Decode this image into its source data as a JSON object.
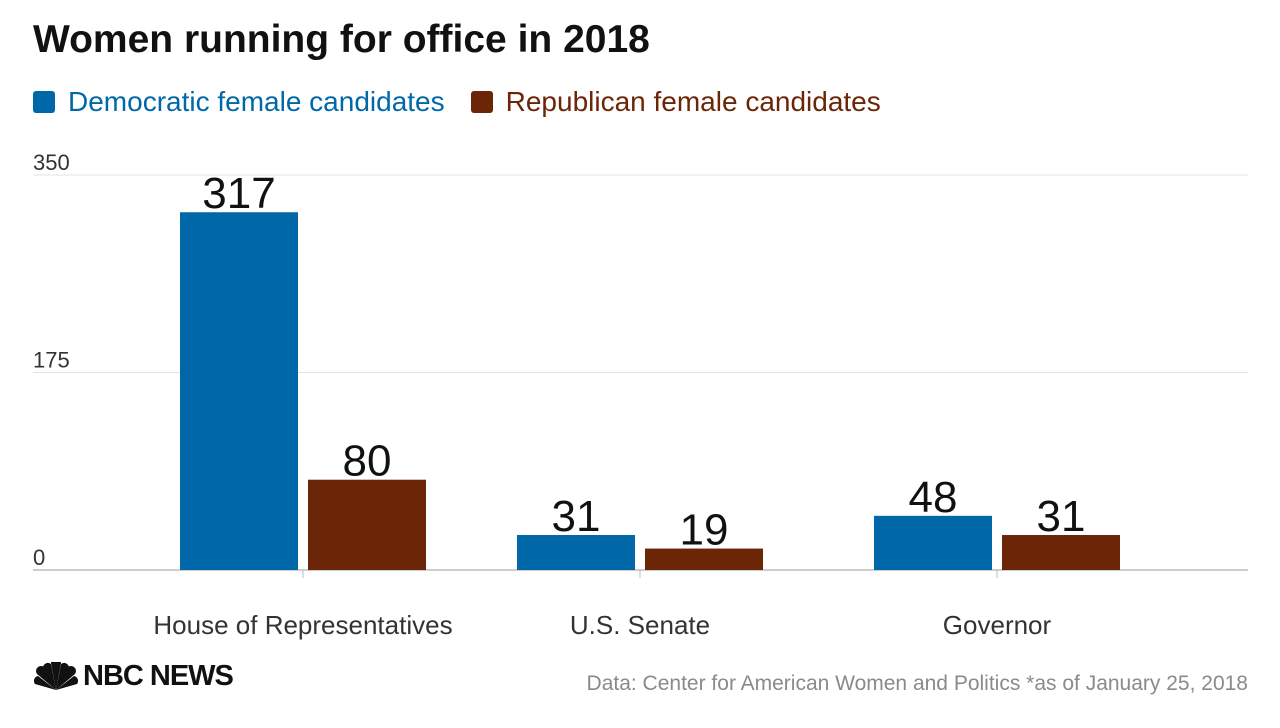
{
  "header": {
    "title": "Women running for office in 2018"
  },
  "legend": [
    {
      "label": "Democratic female candidates",
      "color": "#0068a8"
    },
    {
      "label": "Republican female candidates",
      "color": "#6b2507"
    }
  ],
  "chart_data": {
    "type": "bar",
    "title": "Women running for office in 2018",
    "xlabel": "",
    "ylabel": "",
    "categories": [
      "House of Representatives",
      "U.S. Senate",
      "Governor"
    ],
    "series": [
      {
        "name": "Democratic female candidates",
        "values": [
          317,
          31,
          48
        ],
        "color": "#0068a8"
      },
      {
        "name": "Republican female candidates",
        "values": [
          80,
          19,
          31
        ],
        "color": "#6b2507"
      }
    ],
    "ylim": [
      0,
      350
    ],
    "yticks": [
      0,
      175,
      350
    ],
    "ytick_labels": [
      "0",
      "175",
      "350"
    ],
    "grid": true,
    "legend_position": "top-left",
    "data_labels": true
  },
  "footer": {
    "logo_text": "NBC NEWS",
    "source": "Data: Center for American Women and Politics *as of January 25, 2018"
  }
}
